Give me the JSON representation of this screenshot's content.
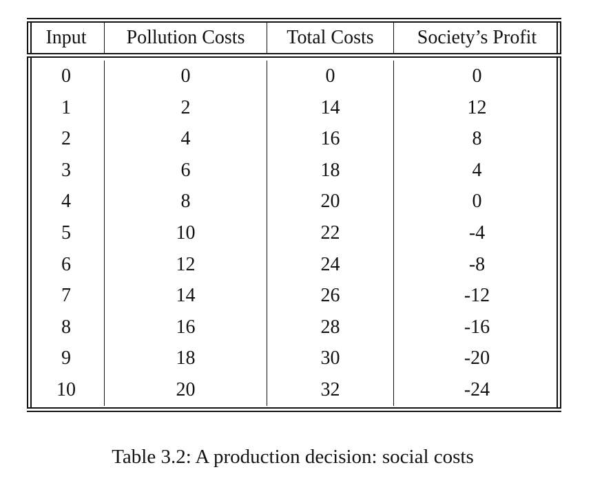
{
  "table": {
    "headers": [
      "Input",
      "Pollution Costs",
      "Total Costs",
      "Society’s Profit"
    ],
    "rows": [
      [
        "0",
        "0",
        "0",
        "0"
      ],
      [
        "1",
        "2",
        "14",
        "12"
      ],
      [
        "2",
        "4",
        "16",
        "8"
      ],
      [
        "3",
        "6",
        "18",
        "4"
      ],
      [
        "4",
        "8",
        "20",
        "0"
      ],
      [
        "5",
        "10",
        "22",
        "-4"
      ],
      [
        "6",
        "12",
        "24",
        "-8"
      ],
      [
        "7",
        "14",
        "26",
        "-12"
      ],
      [
        "8",
        "16",
        "28",
        "-16"
      ],
      [
        "9",
        "18",
        "30",
        "-20"
      ],
      [
        "10",
        "20",
        "32",
        "-24"
      ]
    ]
  },
  "caption": "Table 3.2: A production decision: social costs"
}
